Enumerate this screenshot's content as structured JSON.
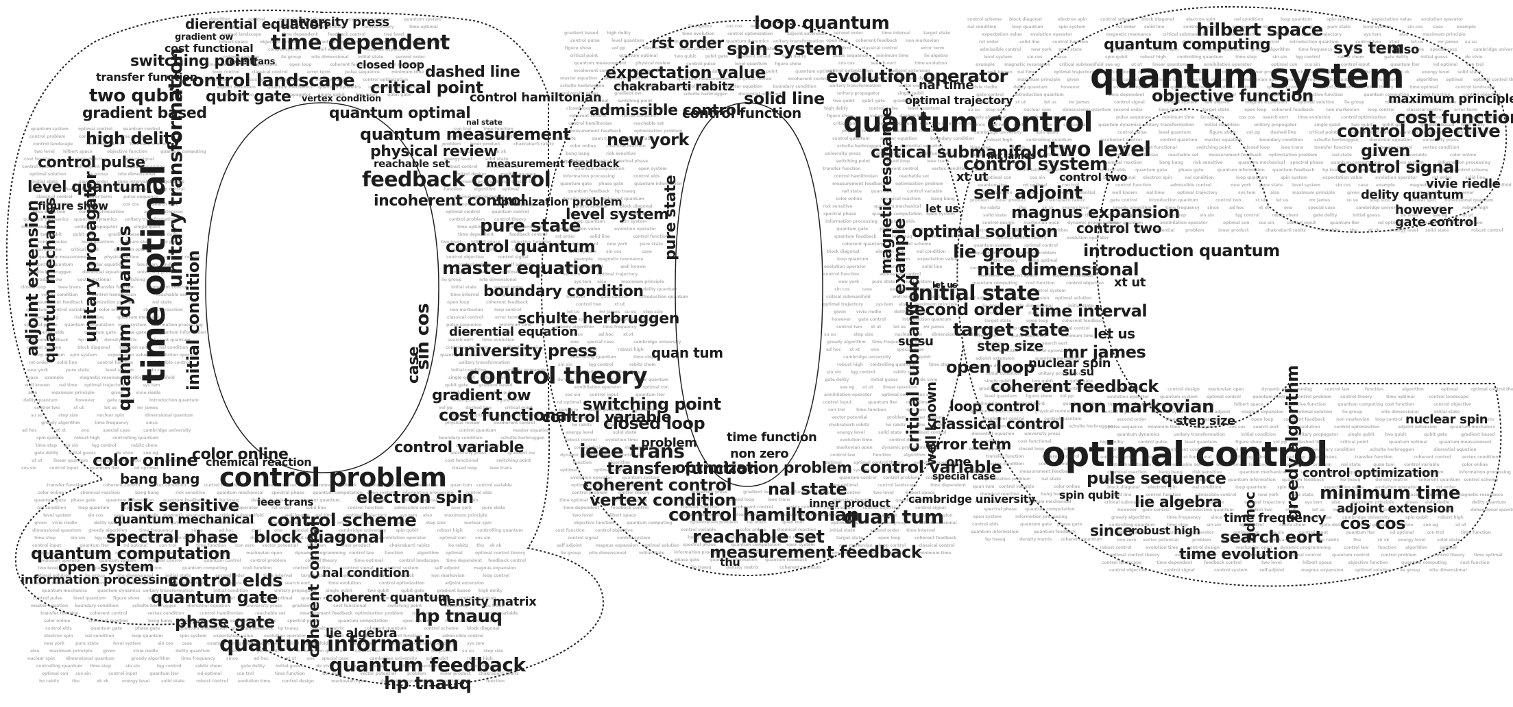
{
  "wordcloud": {
    "letters": "qoc",
    "big_words": [
      "quantum system",
      "optimal control",
      "quantum control",
      "control problem",
      "control theory",
      "time optimal"
    ],
    "words": [
      "quantum system",
      "optimal control",
      "quantum control",
      "control problem",
      "control theory",
      "time optimal",
      "control landscape",
      "time dependent",
      "feedback control",
      "two level",
      "hilbert space",
      "objective function",
      "quantum computing",
      "cost function",
      "control objective",
      "control signal",
      "control system",
      "self adjoint",
      "magnus expansion",
      "optimal solution",
      "lie group",
      "nite dimensional",
      "initial state",
      "second order",
      "time interval",
      "target state",
      "open loop",
      "coherent feedback",
      "non markovian",
      "loop control",
      "classical control",
      "error term",
      "pulse sequence",
      "minimum time",
      "lie algebra",
      "cos cos",
      "search eort",
      "time evolution",
      "control optimization",
      "adjoint extension",
      "quantum mechanics",
      "quantum dynamics",
      "unitary transformation",
      "initial condition",
      "unitary propagator",
      "single qubit",
      "two qubit",
      "qubit gate",
      "gradient based",
      "high delity",
      "control pulse",
      "level quantum",
      "figure show",
      "vol pp",
      "dashed line",
      "critical point",
      "quantum optimal",
      "quantum measurement",
      "physical review",
      "incoherent control",
      "control quantum",
      "master equation",
      "boundary condition",
      "schulte herbruggen",
      "dierential equation",
      "university press",
      "gradient ow",
      "cost functional",
      "switching point",
      "closed loop",
      "ieee trans",
      "transfer function",
      "coherent control",
      "vertex condition",
      "control hamiltonian",
      "reachable set",
      "measurement feedback",
      "optimization problem",
      "nal state",
      "quan tum",
      "control variable",
      "color online",
      "chemical reaction",
      "bang bang",
      "risk sensitive",
      "quantum mechanical",
      "spectral phase",
      "quantum computation",
      "open system",
      "information processing",
      "control elds",
      "quantum gate",
      "phase gate",
      "quantum information",
      "quantum feedback",
      "hp tnauq",
      "density matrix",
      "coherent quantum",
      "control scheme",
      "block diagonal",
      "electron spin",
      "nal condition",
      "loop quantum",
      "spin system",
      "expectation value",
      "evolution operator",
      "rst order",
      "solid line",
      "control function",
      "admissible control",
      "new york",
      "pure state",
      "level system",
      "sin cos",
      "case",
      "example",
      "magnetic resonance",
      "critical submanifold",
      "well known",
      "nal time",
      "optimal trajectory",
      "sys tem",
      "also",
      "maximum principle",
      "given",
      "vivie riedle",
      "delity quantum",
      "however",
      "gate control",
      "introduction quantum",
      "control two",
      "xt ut",
      "let us",
      "mr james",
      "su su",
      "step size",
      "nuclear spin",
      "dimensional quantum",
      "greedy algorithm",
      "time frequency",
      "since",
      "ad hoc",
      "xt xt",
      "one",
      "special case",
      "cambridge university",
      "spin qubit",
      "robust high",
      "controlling quantum",
      "time step",
      "sin sin",
      "lqg control",
      "rabitz chem",
      "gate delity",
      "initial guess",
      "de vivie",
      "see eg",
      "ut ut",
      "linear quantum",
      "annihilation operator",
      "optimal con",
      "cos sin",
      "control input",
      "quantum lter",
      "nd optimal",
      "con trol",
      "time function",
      "non zero",
      "vector potential",
      "problem",
      "inner product",
      "chakrabarti rabitz",
      "ho rabitz",
      "thu",
      "xk xk",
      "energy level",
      "solid state",
      "robust control",
      "evolution time",
      "control design",
      "markovian open",
      "dynamic programming",
      "control law",
      "function",
      "algorithm",
      "optimal",
      "optimal control theory",
      "evolution operator"
    ]
  },
  "colors": {
    "text": "#1c1c1c",
    "outline": "#222222",
    "background": "#ffffff"
  }
}
